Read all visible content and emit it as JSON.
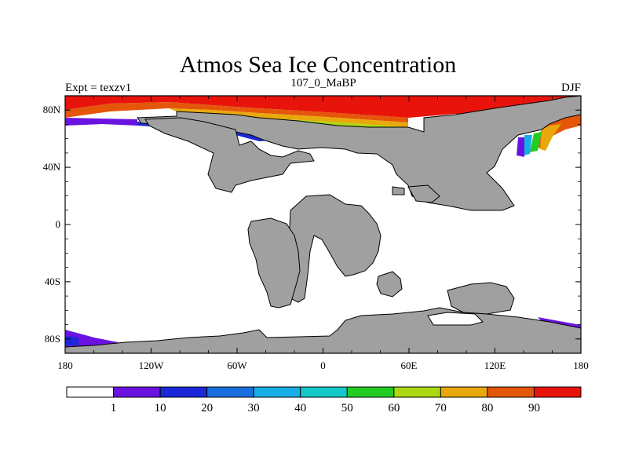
{
  "title": "Atmos Sea Ice Concentration",
  "left_label": "Expt = texzv1",
  "center_label": "107_0_MaBP",
  "right_label": "DJF",
  "lat_ticks": [
    {
      "value": 80,
      "label": "80N"
    },
    {
      "value": 40,
      "label": "40N"
    },
    {
      "value": 0,
      "label": "0"
    },
    {
      "value": -40,
      "label": "40S"
    },
    {
      "value": -80,
      "label": "80S"
    }
  ],
  "lon_ticks": [
    {
      "value": -180,
      "label": "180"
    },
    {
      "value": -120,
      "label": "120W"
    },
    {
      "value": -60,
      "label": "60W"
    },
    {
      "value": 0,
      "label": "0"
    },
    {
      "value": 60,
      "label": "60E"
    },
    {
      "value": 120,
      "label": "120E"
    },
    {
      "value": 180,
      "label": "180"
    }
  ],
  "colorbar": {
    "labels": [
      "1",
      "10",
      "20",
      "30",
      "40",
      "50",
      "60",
      "70",
      "80",
      "90"
    ],
    "colors": [
      "#ffffff",
      "#6a13e0",
      "#1a28d8",
      "#1a6ee0",
      "#16aee6",
      "#14c9c9",
      "#22cc22",
      "#aad811",
      "#e8a80c",
      "#e4560a",
      "#e8140c"
    ]
  },
  "colors": {
    "land": "#a0a0a0",
    "ocean": "#ffffff",
    "outline": "#000000"
  }
}
